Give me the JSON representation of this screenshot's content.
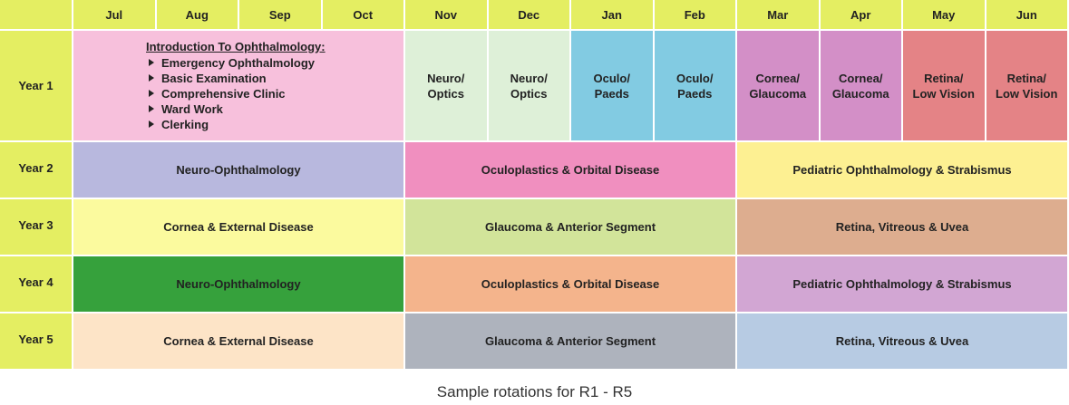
{
  "header": {
    "months": [
      "Jul",
      "Aug",
      "Sep",
      "Oct",
      "Nov",
      "Dec",
      "Jan",
      "Feb",
      "Mar",
      "Apr",
      "May",
      "Jun"
    ]
  },
  "rows": [
    {
      "label": "Year 1",
      "cells": [
        {
          "title": "Introduction To Ophthalmology:",
          "items": [
            "Emergency Ophthalmology",
            "Basic Examination",
            "Comprehensive Clinic",
            "Ward Work",
            "Clerking"
          ],
          "span": 4,
          "color": "#f7c0dc"
        },
        {
          "lines": [
            "Neuro/",
            "Optics"
          ],
          "span": 1,
          "color": "#def0d8"
        },
        {
          "lines": [
            "Neuro/",
            "Optics"
          ],
          "span": 1,
          "color": "#def0d8"
        },
        {
          "lines": [
            "Oculo/",
            "Paeds"
          ],
          "span": 1,
          "color": "#82cbe2"
        },
        {
          "lines": [
            "Oculo/",
            "Paeds"
          ],
          "span": 1,
          "color": "#82cbe2"
        },
        {
          "lines": [
            "Cornea/",
            "Glaucoma"
          ],
          "span": 1,
          "color": "#d38fc7"
        },
        {
          "lines": [
            "Cornea/",
            "Glaucoma"
          ],
          "span": 1,
          "color": "#d38fc7"
        },
        {
          "lines": [
            "Retina/",
            "Low Vision"
          ],
          "span": 1,
          "color": "#e48386"
        },
        {
          "lines": [
            "Retina/",
            "Low Vision"
          ],
          "span": 1,
          "color": "#e48386"
        }
      ]
    },
    {
      "label": "Year 2",
      "cells": [
        {
          "lines": [
            "Neuro-Ophthalmology"
          ],
          "span": 4,
          "color": "#b8b8de"
        },
        {
          "lines": [
            "Oculoplastics & Orbital Disease"
          ],
          "span": 4,
          "color": "#f08fbf"
        },
        {
          "lines": [
            "Pediatric Ophthalmology & Strabismus"
          ],
          "span": 4,
          "color": "#fdf092"
        }
      ]
    },
    {
      "label": "Year 3",
      "cells": [
        {
          "lines": [
            "Cornea & External Disease"
          ],
          "span": 4,
          "color": "#fbfa9e"
        },
        {
          "lines": [
            "Glaucoma & Anterior Segment"
          ],
          "span": 4,
          "color": "#d2e49a"
        },
        {
          "lines": [
            "Retina, Vitreous & Uvea"
          ],
          "span": 4,
          "color": "#ddad8f"
        }
      ]
    },
    {
      "label": "Year 4",
      "cells": [
        {
          "lines": [
            "Neuro-Ophthalmology"
          ],
          "span": 4,
          "color": "#36a13c"
        },
        {
          "lines": [
            "Oculoplastics & Orbital Disease"
          ],
          "span": 4,
          "color": "#f4b48c"
        },
        {
          "lines": [
            "Pediatric Ophthalmology & Strabismus"
          ],
          "span": 4,
          "color": "#d2a6d3"
        }
      ]
    },
    {
      "label": "Year 5",
      "cells": [
        {
          "lines": [
            "Cornea & External Disease"
          ],
          "span": 4,
          "color": "#fde4c7"
        },
        {
          "lines": [
            "Glaucoma & Anterior Segment"
          ],
          "span": 4,
          "color": "#aeb3bd"
        },
        {
          "lines": [
            "Retina, Vitreous & Uvea"
          ],
          "span": 4,
          "color": "#b7cbe3"
        }
      ]
    }
  ],
  "caption": "Sample rotations for R1 - R5"
}
